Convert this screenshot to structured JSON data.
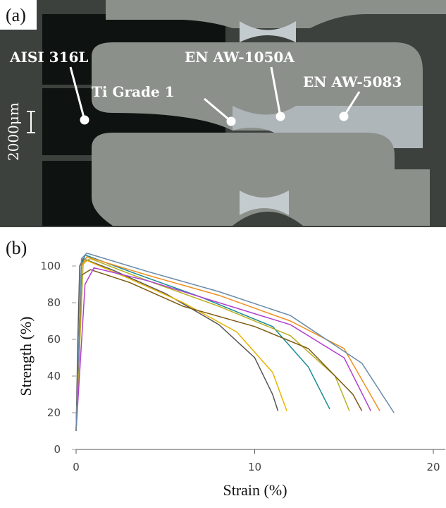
{
  "photo": {
    "panel_label": "(a)",
    "labels": [
      "AISI 316L",
      "Ti Grade 1",
      "EN AW-1050A",
      "EN AW-5083"
    ],
    "scale_bar": "2000μm"
  },
  "chart_data": {
    "type": "line",
    "panel_label": "(b)",
    "x_label": "Strain (%)",
    "y_label": "Strength (%)",
    "xlim": [
      0,
      20
    ],
    "ylim": [
      0,
      100
    ],
    "xticks": [
      0,
      10,
      20
    ],
    "yticks": [
      0,
      20,
      40,
      60,
      80,
      100
    ],
    "series": [
      {
        "color": "#555555",
        "x": [
          0,
          0.1,
          0.2,
          0.4,
          2,
          5,
          8,
          10,
          11,
          11.3
        ],
        "values": [
          10,
          60,
          100,
          104,
          98,
          85,
          68,
          50,
          30,
          21
        ]
      },
      {
        "color": "#e8b400",
        "x": [
          0,
          0.3,
          0.6,
          3,
          6,
          9,
          11,
          11.8
        ],
        "values": [
          10,
          100,
          103,
          93,
          80,
          64,
          42,
          21
        ]
      },
      {
        "color": "#1a8a96",
        "x": [
          0,
          0.3,
          0.5,
          3,
          7,
          11,
          13,
          14.2
        ],
        "values": [
          10,
          100,
          106,
          97,
          83,
          67,
          45,
          22
        ]
      },
      {
        "color": "#b8b020",
        "x": [
          0,
          0.4,
          0.8,
          4,
          8,
          12,
          14.5,
          15.3
        ],
        "values": [
          10,
          102,
          104,
          92,
          78,
          62,
          40,
          21
        ]
      },
      {
        "color": "#7a5a10",
        "x": [
          0,
          0.3,
          0.8,
          3,
          6,
          10,
          13,
          15.5,
          16
        ],
        "values": [
          10,
          95,
          98,
          91,
          78,
          67,
          55,
          30,
          21
        ]
      },
      {
        "color": "#b040d0",
        "x": [
          0,
          0.5,
          1,
          4,
          8,
          12,
          15,
          16.5
        ],
        "values": [
          10,
          90,
          99,
          92,
          80,
          68,
          50,
          21
        ]
      },
      {
        "color": "#f09020",
        "x": [
          0,
          0.3,
          0.6,
          4,
          8,
          12,
          15,
          17
        ],
        "values": [
          10,
          100,
          105,
          95,
          84,
          70,
          55,
          21
        ]
      },
      {
        "color": "#6a8aa8",
        "x": [
          0,
          0.3,
          0.6,
          4,
          8,
          12,
          16,
          17.8
        ],
        "values": [
          10,
          104,
          107,
          97,
          86,
          73,
          47,
          20
        ]
      }
    ]
  }
}
